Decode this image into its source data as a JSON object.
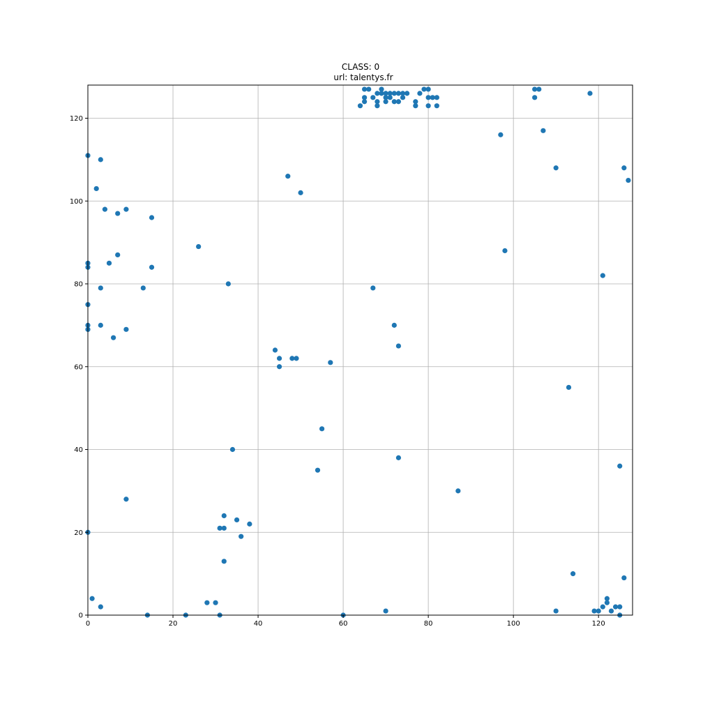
{
  "chart_data": {
    "type": "scatter",
    "title": "CLASS: 0",
    "subtitle": "url: talentys.fr",
    "xlabel": "",
    "ylabel": "",
    "xlim": [
      0,
      128
    ],
    "ylim": [
      0,
      128
    ],
    "x_ticks": [
      0,
      20,
      40,
      60,
      80,
      100,
      120
    ],
    "y_ticks": [
      0,
      20,
      40,
      60,
      80,
      100,
      120
    ],
    "x_tick_labels": [
      "0",
      "20",
      "40",
      "60",
      "80",
      "100",
      "120"
    ],
    "y_tick_labels": [
      "0",
      "20",
      "40",
      "60",
      "80",
      "100",
      "120"
    ],
    "grid": true,
    "marker_color": "#1f77b4",
    "points": [
      [
        0,
        111
      ],
      [
        3,
        110
      ],
      [
        2,
        103
      ],
      [
        4,
        98
      ],
      [
        7,
        97
      ],
      [
        9,
        98
      ],
      [
        15,
        96
      ],
      [
        0,
        85
      ],
      [
        0,
        84
      ],
      [
        5,
        85
      ],
      [
        7,
        87
      ],
      [
        15,
        84
      ],
      [
        3,
        79
      ],
      [
        13,
        79
      ],
      [
        0,
        75
      ],
      [
        0,
        70
      ],
      [
        0,
        69
      ],
      [
        3,
        70
      ],
      [
        9,
        69
      ],
      [
        6,
        67
      ],
      [
        26,
        89
      ],
      [
        33,
        80
      ],
      [
        47,
        106
      ],
      [
        50,
        102
      ],
      [
        44,
        64
      ],
      [
        45,
        62
      ],
      [
        45,
        60
      ],
      [
        48,
        62
      ],
      [
        49,
        62
      ],
      [
        57,
        61
      ],
      [
        55,
        45
      ],
      [
        54,
        35
      ],
      [
        34,
        40
      ],
      [
        9,
        28
      ],
      [
        0,
        20
      ],
      [
        32,
        24
      ],
      [
        35,
        23
      ],
      [
        38,
        22
      ],
      [
        31,
        21
      ],
      [
        32,
        21
      ],
      [
        36,
        19
      ],
      [
        32,
        13
      ],
      [
        1,
        4
      ],
      [
        3,
        2
      ],
      [
        28,
        3
      ],
      [
        30,
        3
      ],
      [
        14,
        0
      ],
      [
        23,
        0
      ],
      [
        31,
        0
      ],
      [
        60,
        0
      ],
      [
        70,
        1
      ],
      [
        64,
        123
      ],
      [
        65,
        127
      ],
      [
        66,
        127
      ],
      [
        65,
        125
      ],
      [
        65,
        124
      ],
      [
        67,
        125
      ],
      [
        68,
        126
      ],
      [
        68,
        124
      ],
      [
        68,
        123
      ],
      [
        69,
        127
      ],
      [
        69,
        126
      ],
      [
        70,
        126
      ],
      [
        70,
        125
      ],
      [
        70,
        124
      ],
      [
        71,
        126
      ],
      [
        71,
        125
      ],
      [
        72,
        126
      ],
      [
        72,
        124
      ],
      [
        73,
        126
      ],
      [
        73,
        124
      ],
      [
        74,
        126
      ],
      [
        74,
        125
      ],
      [
        75,
        126
      ],
      [
        77,
        124
      ],
      [
        77,
        123
      ],
      [
        78,
        126
      ],
      [
        79,
        127
      ],
      [
        80,
        127
      ],
      [
        80,
        125
      ],
      [
        80,
        123
      ],
      [
        81,
        125
      ],
      [
        82,
        125
      ],
      [
        82,
        123
      ],
      [
        67,
        79
      ],
      [
        72,
        70
      ],
      [
        73,
        65
      ],
      [
        73,
        38
      ],
      [
        87,
        30
      ],
      [
        97,
        116
      ],
      [
        98,
        88
      ],
      [
        105,
        127
      ],
      [
        106,
        127
      ],
      [
        105,
        125
      ],
      [
        107,
        117
      ],
      [
        110,
        108
      ],
      [
        118,
        126
      ],
      [
        126,
        108
      ],
      [
        127,
        105
      ],
      [
        121,
        82
      ],
      [
        113,
        55
      ],
      [
        125,
        36
      ],
      [
        114,
        10
      ],
      [
        110,
        1
      ],
      [
        126,
        9
      ],
      [
        119,
        1
      ],
      [
        120,
        1
      ],
      [
        121,
        2
      ],
      [
        122,
        4
      ],
      [
        122,
        3
      ],
      [
        123,
        1
      ],
      [
        124,
        2
      ],
      [
        125,
        2
      ],
      [
        125,
        0
      ]
    ]
  }
}
